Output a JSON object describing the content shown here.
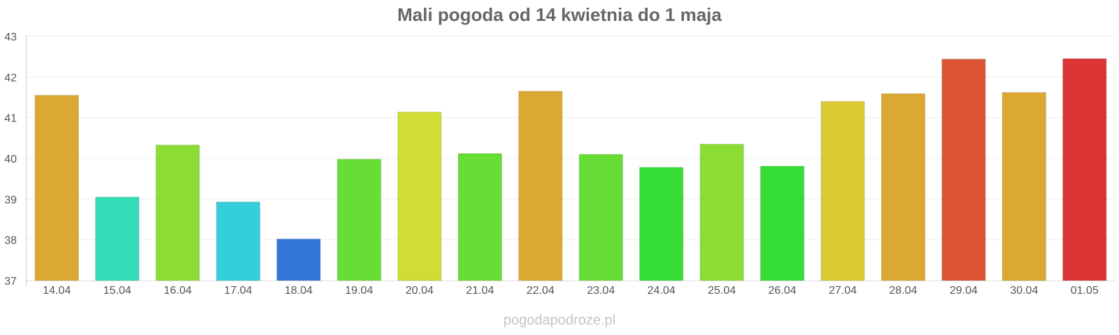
{
  "chart_data": {
    "type": "bar",
    "title": "Mali pogoda od 14 kwietnia do 1 maja",
    "xlabel": "",
    "ylabel": "",
    "ylim": [
      37,
      43
    ],
    "yticks": [
      37,
      38,
      39,
      40,
      41,
      42,
      43
    ],
    "grid": true,
    "legend": "none",
    "categories": [
      "14.04",
      "15.04",
      "16.04",
      "17.04",
      "18.04",
      "19.04",
      "20.04",
      "21.04",
      "22.04",
      "23.04",
      "24.04",
      "25.04",
      "26.04",
      "27.04",
      "28.04",
      "29.04",
      "30.04",
      "01.05"
    ],
    "values": [
      41.55,
      39.05,
      40.33,
      38.93,
      38.02,
      39.98,
      41.14,
      40.12,
      41.65,
      40.1,
      39.78,
      40.35,
      39.81,
      41.4,
      41.59,
      42.44,
      41.62,
      42.45
    ],
    "colors": [
      "#dba833",
      "#35dcb8",
      "#8bdd35",
      "#35cfdb",
      "#3576db",
      "#68dd35",
      "#cfdd35",
      "#68dd35",
      "#dba833",
      "#68dd35",
      "#35dd35",
      "#8bdd35",
      "#35dd35",
      "#dbc933",
      "#dba833",
      "#db5535",
      "#dba833",
      "#db3535"
    ]
  },
  "watermark": "pogodapodroze.pl"
}
